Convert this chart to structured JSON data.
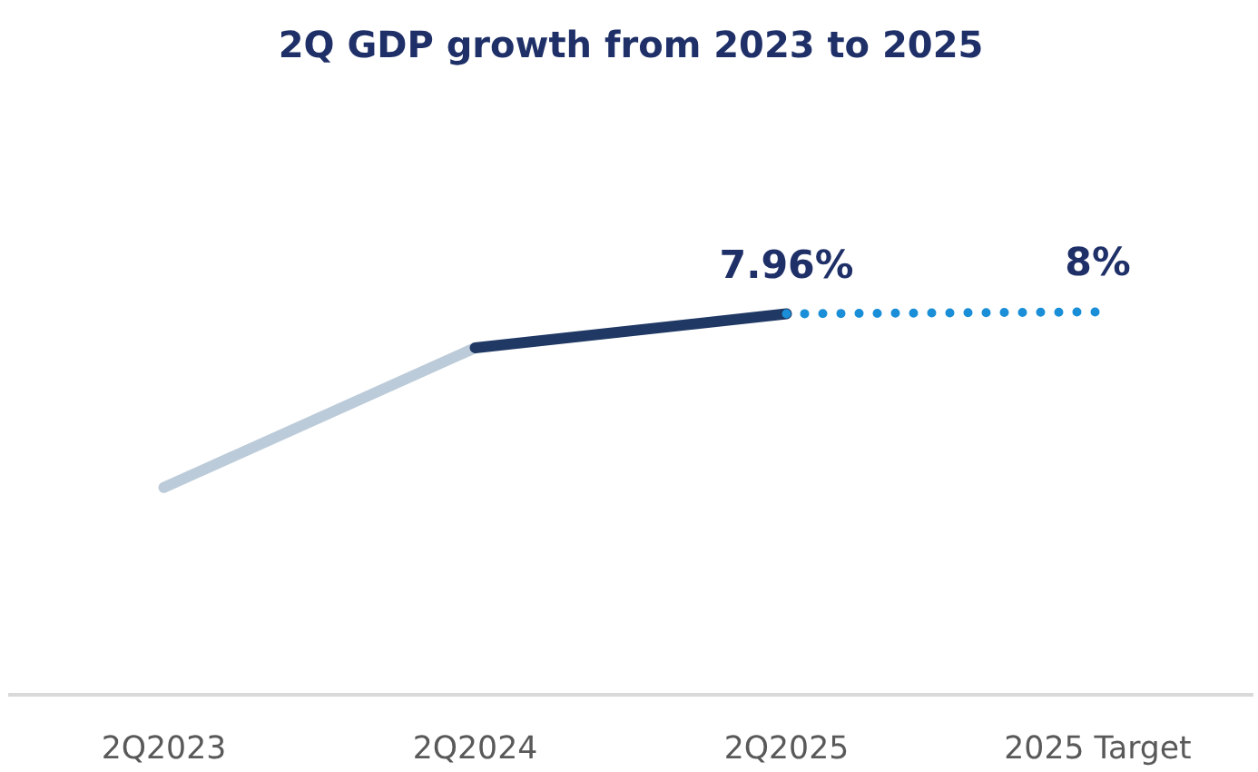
{
  "chart_data": {
    "type": "line",
    "title": "2Q GDP growth from 2023 to 2025",
    "categories": [
      "2Q2023",
      "2Q2024",
      "2Q2025",
      "2025 Target"
    ],
    "tick_labels": "x",
    "series": [
      {
        "color": "#bccbd9",
        "line_style": "solid",
        "values": [
          4.33,
          7.25,
          null,
          null
        ]
      },
      {
        "color": "#1f3864",
        "line_style": "solid",
        "values": [
          null,
          7.25,
          7.96,
          null
        ],
        "value_labels": [
          null,
          null,
          "7.96%",
          null
        ]
      },
      {
        "color": "#1a8fd8",
        "line_style": "dotted",
        "values": [
          null,
          null,
          7.96,
          8
        ],
        "value_labels": [
          null,
          null,
          null,
          "8%"
        ]
      }
    ],
    "grid": false,
    "marker": "none"
  }
}
